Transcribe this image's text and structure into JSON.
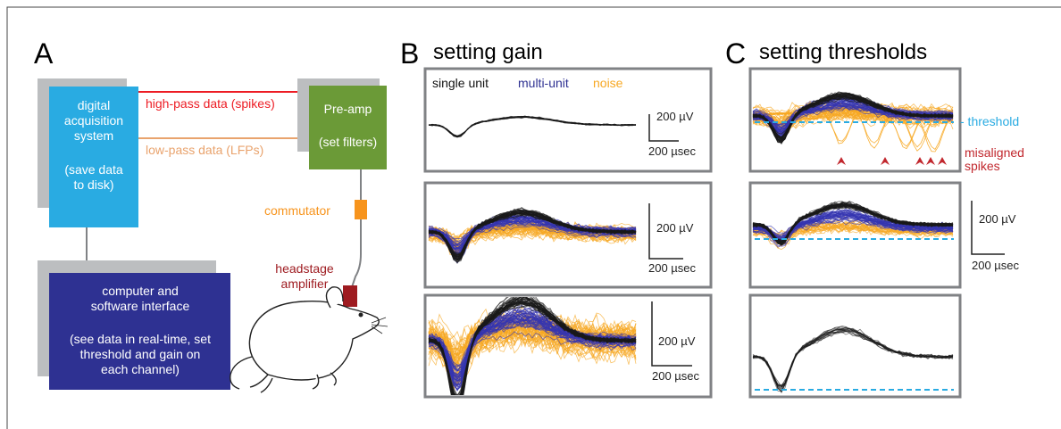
{
  "panel_a": {
    "letter": "A",
    "acquisition": {
      "title": "digital acquisition system",
      "note": "(save data to disk)"
    },
    "high_pass": "high-pass data (spikes)",
    "low_pass": "low-pass data (LFPs)",
    "preamp": {
      "title": "Pre-amp",
      "note": "(set filters)"
    },
    "commutator": "commutator",
    "headstage": "headstage amplifier",
    "computer": {
      "title": "computer and software interface",
      "note": "(see data in real-time, set threshold and gain on each channel)"
    }
  },
  "panel_b": {
    "letter": "B",
    "title": "setting gain",
    "legend": [
      "single unit",
      "multi-unit",
      "noise"
    ],
    "scale_bars": [
      {
        "voltage": "200 µV",
        "time": "200 µsec"
      },
      {
        "voltage": "200 µV",
        "time": "200 µsec"
      },
      {
        "voltage": "200 µV",
        "time": "200 µsec"
      }
    ]
  },
  "panel_c": {
    "letter": "C",
    "title": "setting thresholds",
    "threshold_label": "- threshold",
    "misaligned_label": "misaligned spikes",
    "scale_bar": {
      "voltage": "200 µV",
      "time": "200 µsec"
    }
  }
}
